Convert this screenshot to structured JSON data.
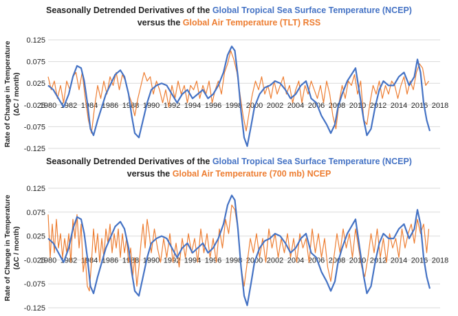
{
  "chart_data": [
    {
      "type": "line",
      "title": {
        "line1_prefix": "Seasonally Detrended Derivatives of the",
        "line1_highlight": "Global Tropical Sea Surface Temperature (NCEP)",
        "line2_prefix": "versus the",
        "line2_highlight": "Global Air Temperature (TLT)",
        "line2_suffix": "RSS"
      },
      "ylabel_line1": "Rate of Change in Temperature",
      "ylabel_line2": "(ΔC / month)",
      "xlim": [
        1980,
        2018
      ],
      "ylim": [
        -0.125,
        0.125
      ],
      "x_ticks": [
        "1980",
        "1982",
        "1984",
        "1986",
        "1988",
        "1990",
        "1992",
        "1994",
        "1996",
        "1998",
        "2000",
        "2002",
        "2004",
        "2006",
        "2008",
        "2010",
        "2012",
        "2014",
        "2016",
        "2018"
      ],
      "y_ticks": [
        "0.125",
        "0.075",
        "0.025",
        "-0.025",
        "-0.075",
        "-0.125"
      ],
      "grid": true,
      "series": [
        {
          "color": "#4472C4",
          "x": [
            1980.0,
            1980.5,
            1981.0,
            1981.5,
            1982.0,
            1982.4,
            1982.8,
            1983.2,
            1983.5,
            1983.8,
            1984.1,
            1984.4,
            1984.8,
            1985.2,
            1985.6,
            1986.0,
            1986.5,
            1987.0,
            1987.4,
            1987.8,
            1988.1,
            1988.4,
            1988.8,
            1989.2,
            1989.6,
            1990.0,
            1990.5,
            1991.0,
            1991.5,
            1992.0,
            1992.5,
            1993.0,
            1993.5,
            1994.0,
            1994.5,
            1995.0,
            1995.5,
            1996.0,
            1996.5,
            1997.0,
            1997.4,
            1997.8,
            1998.1,
            1998.4,
            1998.7,
            1999.0,
            1999.3,
            1999.7,
            2000.0,
            2000.5,
            2001.0,
            2001.5,
            2002.0,
            2002.5,
            2003.0,
            2003.5,
            2004.0,
            2004.5,
            2005.0,
            2005.5,
            2006.0,
            2006.5,
            2007.0,
            2007.4,
            2007.8,
            2008.1,
            2008.5,
            2009.0,
            2009.4,
            2009.8,
            2010.2,
            2010.6,
            2010.9,
            2011.3,
            2011.7,
            2012.1,
            2012.5,
            2013.0,
            2013.5,
            2014.0,
            2014.5,
            2015.0,
            2015.5,
            2015.8,
            2016.1,
            2016.4,
            2016.7,
            2017.0
          ],
          "y": [
            0.02,
            0.01,
            -0.01,
            -0.03,
            0.0,
            0.04,
            0.065,
            0.06,
            0.03,
            -0.02,
            -0.08,
            -0.095,
            -0.06,
            -0.03,
            0.0,
            0.02,
            0.045,
            0.055,
            0.04,
            0.0,
            -0.05,
            -0.09,
            -0.1,
            -0.06,
            -0.02,
            0.01,
            0.02,
            0.025,
            0.02,
            0.0,
            -0.02,
            0.0,
            0.01,
            -0.01,
            0.0,
            0.01,
            -0.01,
            0.0,
            0.02,
            0.05,
            0.09,
            0.11,
            0.1,
            0.04,
            -0.04,
            -0.1,
            -0.12,
            -0.07,
            -0.03,
            0.0,
            0.015,
            0.02,
            0.03,
            0.025,
            0.01,
            -0.01,
            0.0,
            0.02,
            0.03,
            -0.01,
            -0.02,
            -0.05,
            -0.07,
            -0.09,
            -0.07,
            -0.03,
            0.0,
            0.03,
            0.045,
            0.06,
            0.0,
            -0.06,
            -0.095,
            -0.08,
            -0.03,
            0.01,
            0.03,
            0.02,
            0.02,
            0.04,
            0.05,
            0.02,
            0.04,
            0.08,
            0.05,
            -0.02,
            -0.06,
            -0.085
          ]
        },
        {
          "color": "#ED7D31",
          "x": [
            1980.0,
            1980.3,
            1980.6,
            1980.9,
            1981.2,
            1981.5,
            1981.8,
            1982.1,
            1982.4,
            1982.7,
            1983.0,
            1983.3,
            1983.6,
            1983.9,
            1984.2,
            1984.5,
            1984.8,
            1985.1,
            1985.4,
            1985.7,
            1986.0,
            1986.3,
            1986.6,
            1986.9,
            1987.2,
            1987.5,
            1987.8,
            1988.1,
            1988.4,
            1988.7,
            1989.0,
            1989.3,
            1989.6,
            1989.9,
            1990.2,
            1990.5,
            1990.8,
            1991.1,
            1991.4,
            1991.7,
            1992.0,
            1992.3,
            1992.6,
            1992.9,
            1993.2,
            1993.5,
            1993.8,
            1994.1,
            1994.4,
            1994.7,
            1995.0,
            1995.3,
            1995.6,
            1995.9,
            1996.2,
            1996.5,
            1996.8,
            1997.1,
            1997.4,
            1997.7,
            1998.0,
            1998.3,
            1998.6,
            1998.9,
            1999.2,
            1999.5,
            1999.8,
            2000.1,
            2000.4,
            2000.7,
            2001.0,
            2001.3,
            2001.6,
            2001.9,
            2002.2,
            2002.5,
            2002.8,
            2003.1,
            2003.4,
            2003.7,
            2004.0,
            2004.3,
            2004.6,
            2004.9,
            2005.2,
            2005.5,
            2005.8,
            2006.1,
            2006.4,
            2006.7,
            2007.0,
            2007.3,
            2007.6,
            2007.9,
            2008.2,
            2008.5,
            2008.8,
            2009.1,
            2009.4,
            2009.7,
            2010.0,
            2010.3,
            2010.6,
            2010.9,
            2011.2,
            2011.5,
            2011.8,
            2012.1,
            2012.4,
            2012.7,
            2013.0,
            2013.3,
            2013.6,
            2013.9,
            2014.2,
            2014.5,
            2014.8,
            2015.1,
            2015.4,
            2015.7,
            2016.0,
            2016.3,
            2016.6,
            2016.9
          ],
          "y": [
            0.04,
            0.01,
            0.03,
            -0.01,
            0.02,
            -0.02,
            0.03,
            0.01,
            0.04,
            0.05,
            0.01,
            0.05,
            -0.01,
            -0.06,
            -0.09,
            -0.03,
            0.02,
            -0.01,
            0.03,
            0.0,
            0.04,
            0.02,
            0.05,
            0.01,
            0.045,
            0.03,
            0.0,
            -0.02,
            -0.05,
            -0.01,
            0.02,
            0.05,
            0.03,
            0.04,
            0.0,
            0.03,
            0.01,
            -0.02,
            0.01,
            -0.03,
            0.02,
            -0.01,
            0.03,
            0.0,
            0.02,
            -0.02,
            0.02,
            0.01,
            0.03,
            -0.01,
            0.02,
            0.0,
            0.03,
            -0.02,
            0.01,
            0.03,
            0.0,
            0.05,
            0.07,
            0.1,
            0.08,
            0.05,
            0.0,
            -0.05,
            -0.085,
            -0.04,
            0.0,
            0.03,
            0.01,
            0.04,
            0.0,
            0.02,
            -0.01,
            0.03,
            0.0,
            0.02,
            0.04,
            0.0,
            0.02,
            -0.02,
            0.01,
            0.03,
            -0.02,
            0.02,
            0.0,
            0.03,
            0.01,
            -0.01,
            0.02,
            -0.02,
            0.03,
            0.0,
            -0.05,
            -0.08,
            -0.02,
            0.02,
            -0.01,
            0.03,
            0.02,
            0.045,
            0.0,
            0.03,
            -0.06,
            -0.07,
            -0.02,
            0.02,
            0.0,
            0.03,
            -0.01,
            0.02,
            0.0,
            0.03,
            0.02,
            -0.01,
            0.02,
            0.04,
            0.0,
            0.03,
            0.01,
            0.05,
            0.07,
            0.06,
            0.02,
            0.03
          ]
        }
      ]
    },
    {
      "type": "line",
      "title": {
        "line1_prefix": "Seasonally Detrended Derivatives of the",
        "line1_highlight": "Global Tropical Sea Surface Temperature (NCEP)",
        "line2_prefix": "versus the",
        "line2_highlight": "Global Air Temperature (700 mb)",
        "line2_suffix": "NCEP"
      },
      "ylabel_line1": "Rate of Change in Temperature",
      "ylabel_line2": "(ΔC / month)",
      "xlim": [
        1980,
        2018
      ],
      "ylim": [
        -0.125,
        0.125
      ],
      "x_ticks": [
        "1980",
        "1982",
        "1984",
        "1986",
        "1988",
        "1990",
        "1992",
        "1994",
        "1996",
        "1998",
        "2000",
        "2002",
        "2004",
        "2006",
        "2008",
        "2010",
        "2012",
        "2014",
        "2016",
        "2018"
      ],
      "y_ticks": [
        "0.125",
        "0.075",
        "0.025",
        "-0.025",
        "-0.075",
        "-0.125"
      ],
      "grid": true,
      "series": [
        {
          "color": "#4472C4",
          "x": [
            1980.0,
            1980.5,
            1981.0,
            1981.5,
            1982.0,
            1982.4,
            1982.8,
            1983.2,
            1983.5,
            1983.8,
            1984.1,
            1984.4,
            1984.8,
            1985.2,
            1985.6,
            1986.0,
            1986.5,
            1987.0,
            1987.4,
            1987.8,
            1988.1,
            1988.4,
            1988.8,
            1989.2,
            1989.6,
            1990.0,
            1990.5,
            1991.0,
            1991.5,
            1992.0,
            1992.5,
            1993.0,
            1993.5,
            1994.0,
            1994.5,
            1995.0,
            1995.5,
            1996.0,
            1996.5,
            1997.0,
            1997.4,
            1997.8,
            1998.1,
            1998.4,
            1998.7,
            1999.0,
            1999.3,
            1999.7,
            2000.0,
            2000.5,
            2001.0,
            2001.5,
            2002.0,
            2002.5,
            2003.0,
            2003.5,
            2004.0,
            2004.5,
            2005.0,
            2005.5,
            2006.0,
            2006.5,
            2007.0,
            2007.4,
            2007.8,
            2008.1,
            2008.5,
            2009.0,
            2009.4,
            2009.8,
            2010.2,
            2010.6,
            2010.9,
            2011.3,
            2011.7,
            2012.1,
            2012.5,
            2013.0,
            2013.5,
            2014.0,
            2014.5,
            2015.0,
            2015.5,
            2015.8,
            2016.1,
            2016.4,
            2016.7,
            2017.0
          ],
          "y": [
            0.02,
            0.01,
            -0.01,
            -0.03,
            0.0,
            0.04,
            0.065,
            0.06,
            0.03,
            -0.02,
            -0.08,
            -0.095,
            -0.06,
            -0.03,
            0.0,
            0.02,
            0.045,
            0.055,
            0.04,
            0.0,
            -0.05,
            -0.09,
            -0.1,
            -0.06,
            -0.02,
            0.01,
            0.02,
            0.025,
            0.02,
            0.0,
            -0.02,
            0.0,
            0.01,
            -0.01,
            0.0,
            0.01,
            -0.01,
            0.0,
            0.02,
            0.05,
            0.09,
            0.11,
            0.1,
            0.04,
            -0.04,
            -0.1,
            -0.12,
            -0.07,
            -0.03,
            0.0,
            0.015,
            0.02,
            0.03,
            0.025,
            0.01,
            -0.01,
            0.0,
            0.02,
            0.03,
            -0.01,
            -0.02,
            -0.05,
            -0.07,
            -0.09,
            -0.07,
            -0.03,
            0.0,
            0.03,
            0.045,
            0.06,
            0.0,
            -0.06,
            -0.095,
            -0.08,
            -0.03,
            0.01,
            0.03,
            0.02,
            0.02,
            0.04,
            0.05,
            0.02,
            0.04,
            0.08,
            0.05,
            -0.02,
            -0.06,
            -0.085
          ]
        },
        {
          "color": "#ED7D31",
          "x": [
            1980.0,
            1980.2,
            1980.4,
            1980.6,
            1980.8,
            1981.0,
            1981.2,
            1981.4,
            1981.6,
            1981.8,
            1982.0,
            1982.2,
            1982.4,
            1982.6,
            1982.8,
            1983.0,
            1983.2,
            1983.4,
            1983.6,
            1983.8,
            1984.0,
            1984.2,
            1984.4,
            1984.6,
            1984.8,
            1985.0,
            1985.2,
            1985.4,
            1985.6,
            1985.8,
            1986.0,
            1986.2,
            1986.4,
            1986.6,
            1986.8,
            1987.0,
            1987.2,
            1987.4,
            1987.6,
            1987.8,
            1988.0,
            1988.2,
            1988.4,
            1988.6,
            1988.8,
            1989.0,
            1989.2,
            1989.4,
            1989.6,
            1989.8,
            1990.0,
            1990.3,
            1990.6,
            1990.9,
            1991.2,
            1991.5,
            1991.8,
            1992.1,
            1992.4,
            1992.7,
            1993.0,
            1993.3,
            1993.6,
            1993.9,
            1994.2,
            1994.5,
            1994.8,
            1995.1,
            1995.4,
            1995.7,
            1996.0,
            1996.3,
            1996.6,
            1996.9,
            1997.2,
            1997.5,
            1997.8,
            1998.1,
            1998.4,
            1998.7,
            1999.0,
            1999.3,
            1999.6,
            1999.9,
            2000.2,
            2000.5,
            2000.8,
            2001.1,
            2001.4,
            2001.7,
            2002.0,
            2002.3,
            2002.6,
            2002.9,
            2003.2,
            2003.5,
            2003.8,
            2004.1,
            2004.4,
            2004.7,
            2005.0,
            2005.3,
            2005.6,
            2005.9,
            2006.2,
            2006.5,
            2006.8,
            2007.1,
            2007.4,
            2007.7,
            2008.0,
            2008.3,
            2008.6,
            2008.9,
            2009.2,
            2009.5,
            2009.8,
            2010.1,
            2010.4,
            2010.7,
            2011.0,
            2011.3,
            2011.6,
            2011.9,
            2012.2,
            2012.5,
            2012.8,
            2013.1,
            2013.4,
            2013.7,
            2014.0,
            2014.3,
            2014.6,
            2014.9,
            2015.2,
            2015.5,
            2015.8,
            2016.1,
            2016.4,
            2016.7,
            2016.9
          ],
          "y": [
            0.07,
            -0.02,
            0.05,
            -0.01,
            0.06,
            0.0,
            0.03,
            -0.02,
            0.02,
            -0.01,
            0.03,
            -0.03,
            0.06,
            0.02,
            0.07,
            0.0,
            0.05,
            -0.05,
            -0.02,
            -0.08,
            -0.09,
            -0.03,
            0.04,
            -0.01,
            0.03,
            -0.03,
            0.02,
            -0.02,
            0.04,
            0.01,
            0.05,
            -0.01,
            0.03,
            0.0,
            0.04,
            -0.02,
            0.03,
            -0.01,
            0.02,
            -0.03,
            0.0,
            -0.06,
            -0.02,
            -0.08,
            -0.04,
            0.01,
            0.05,
            0.0,
            0.06,
            0.03,
            -0.01,
            0.04,
            0.0,
            -0.03,
            0.02,
            -0.02,
            0.03,
            -0.03,
            0.01,
            -0.04,
            0.02,
            -0.02,
            0.03,
            -0.01,
            0.02,
            -0.03,
            0.04,
            -0.01,
            0.03,
            -0.02,
            0.02,
            -0.03,
            0.04,
            0.0,
            0.06,
            0.03,
            0.09,
            0.08,
            0.04,
            -0.04,
            -0.08,
            -0.03,
            0.02,
            -0.01,
            0.03,
            -0.02,
            0.02,
            -0.03,
            0.04,
            0.0,
            0.03,
            -0.02,
            0.02,
            -0.01,
            0.03,
            -0.02,
            0.02,
            -0.03,
            0.03,
            0.0,
            0.02,
            -0.03,
            0.04,
            -0.01,
            0.03,
            -0.02,
            0.02,
            -0.04,
            -0.07,
            -0.02,
            0.03,
            -0.01,
            0.04,
            0.0,
            0.03,
            -0.02,
            0.04,
            0.0,
            -0.04,
            -0.06,
            -0.02,
            0.03,
            -0.01,
            0.04,
            -0.02,
            0.02,
            -0.03,
            0.03,
            0.0,
            0.02,
            -0.02,
            0.04,
            0.0,
            0.03,
            0.05,
            0.01,
            0.06,
            0.03,
            0.05,
            -0.01,
            0.04
          ]
        }
      ]
    }
  ]
}
